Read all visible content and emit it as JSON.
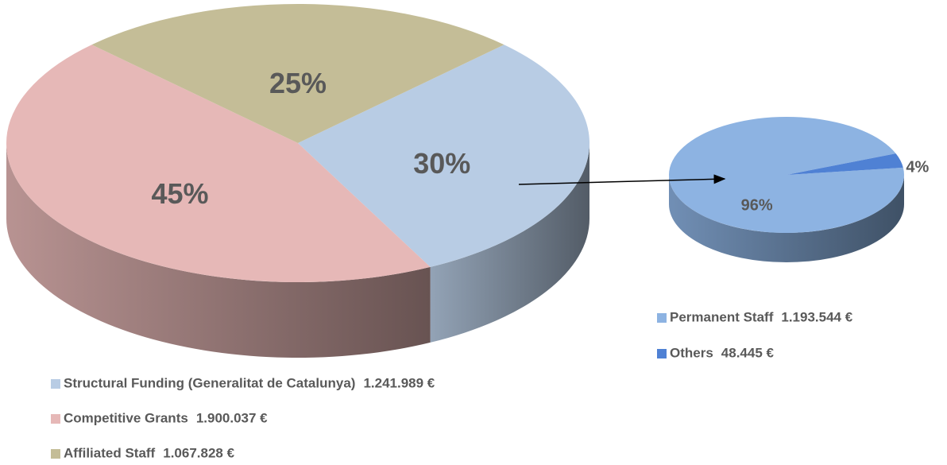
{
  "chart_data": [
    {
      "type": "pie3d",
      "categories": [
        "Structural Funding (Generalitat de Catalunya)",
        "Competitive Grants",
        "Affiliated Staff"
      ],
      "amounts": [
        "1.241.989 €",
        "1.900.037 €",
        "1.067.828 €"
      ],
      "values": [
        30,
        45,
        25
      ],
      "value_labels": [
        "30%",
        "45%",
        "25%"
      ],
      "colors": [
        "#b8cce4",
        "#e6b8b7",
        "#c4bd97"
      ]
    },
    {
      "type": "pie3d",
      "categories": [
        "Permanent Staff",
        "Others"
      ],
      "amounts": [
        "1.193.544 €",
        "48.445 €"
      ],
      "values": [
        96,
        4
      ],
      "value_labels": [
        "96%",
        "4%"
      ],
      "colors": [
        "#8db3e2",
        "#4f81d4"
      ]
    }
  ]
}
